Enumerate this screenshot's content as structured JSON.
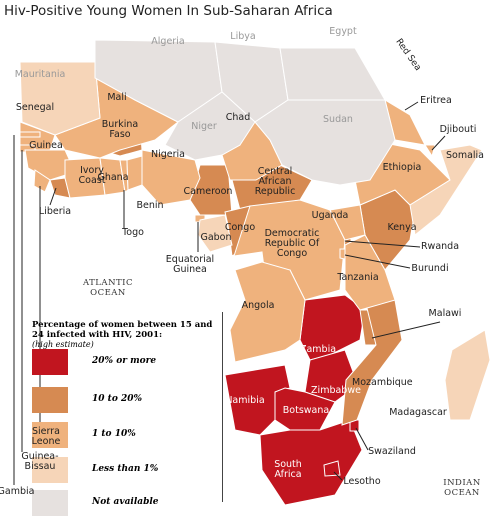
{
  "title": "Hiv-Positive Young Women In Sub-Saharan Africa",
  "legend": {
    "title": "Percentage of women between 15 and 24 infected with HIV, 2001:",
    "subtitle": "(high estimate)",
    "items": [
      {
        "label": "20% or more",
        "color": "#c1151f",
        "countries": [
          "Zambia",
          "Zimbabwe",
          "Namibia",
          "Botswana",
          "South Africa",
          "Swaziland",
          "Lesotho"
        ]
      },
      {
        "label": "10 to 20%",
        "color": "#d68a52",
        "countries": [
          "Burkina Faso",
          "Liberia",
          "Cameroon",
          "Central African Republic",
          "Congo",
          "Kenya",
          "Rwanda",
          "Malawi",
          "Mozambique"
        ]
      },
      {
        "label": "1 to 10%",
        "color": "#efb27d",
        "countries": [
          "Senegal",
          "Gambia",
          "Guinea-Bissau",
          "Guinea",
          "Sierra Leone",
          "Mali",
          "Ivory Coast",
          "Ghana",
          "Togo",
          "Benin",
          "Nigeria",
          "Chad",
          "Equatorial Guinea",
          "Democratic Republic Of Congo",
          "Uganda",
          "Burundi",
          "Tanzania",
          "Angola",
          "Ethiopia",
          "Eritrea",
          "Djibouti"
        ]
      },
      {
        "label": "Less than 1%",
        "color": "#f6d5b8",
        "countries": [
          "Mauritania",
          "Gabon",
          "Somalia",
          "Madagascar"
        ]
      },
      {
        "label": "Not available",
        "color": "#e6e1df",
        "countries": [
          "Algeria",
          "Libya",
          "Egypt",
          "Niger",
          "Sudan"
        ]
      }
    ]
  },
  "oceans": [
    "ATLANTIC OCEAN",
    "INDIAN OCEAN"
  ],
  "sea": "Red Sea"
}
